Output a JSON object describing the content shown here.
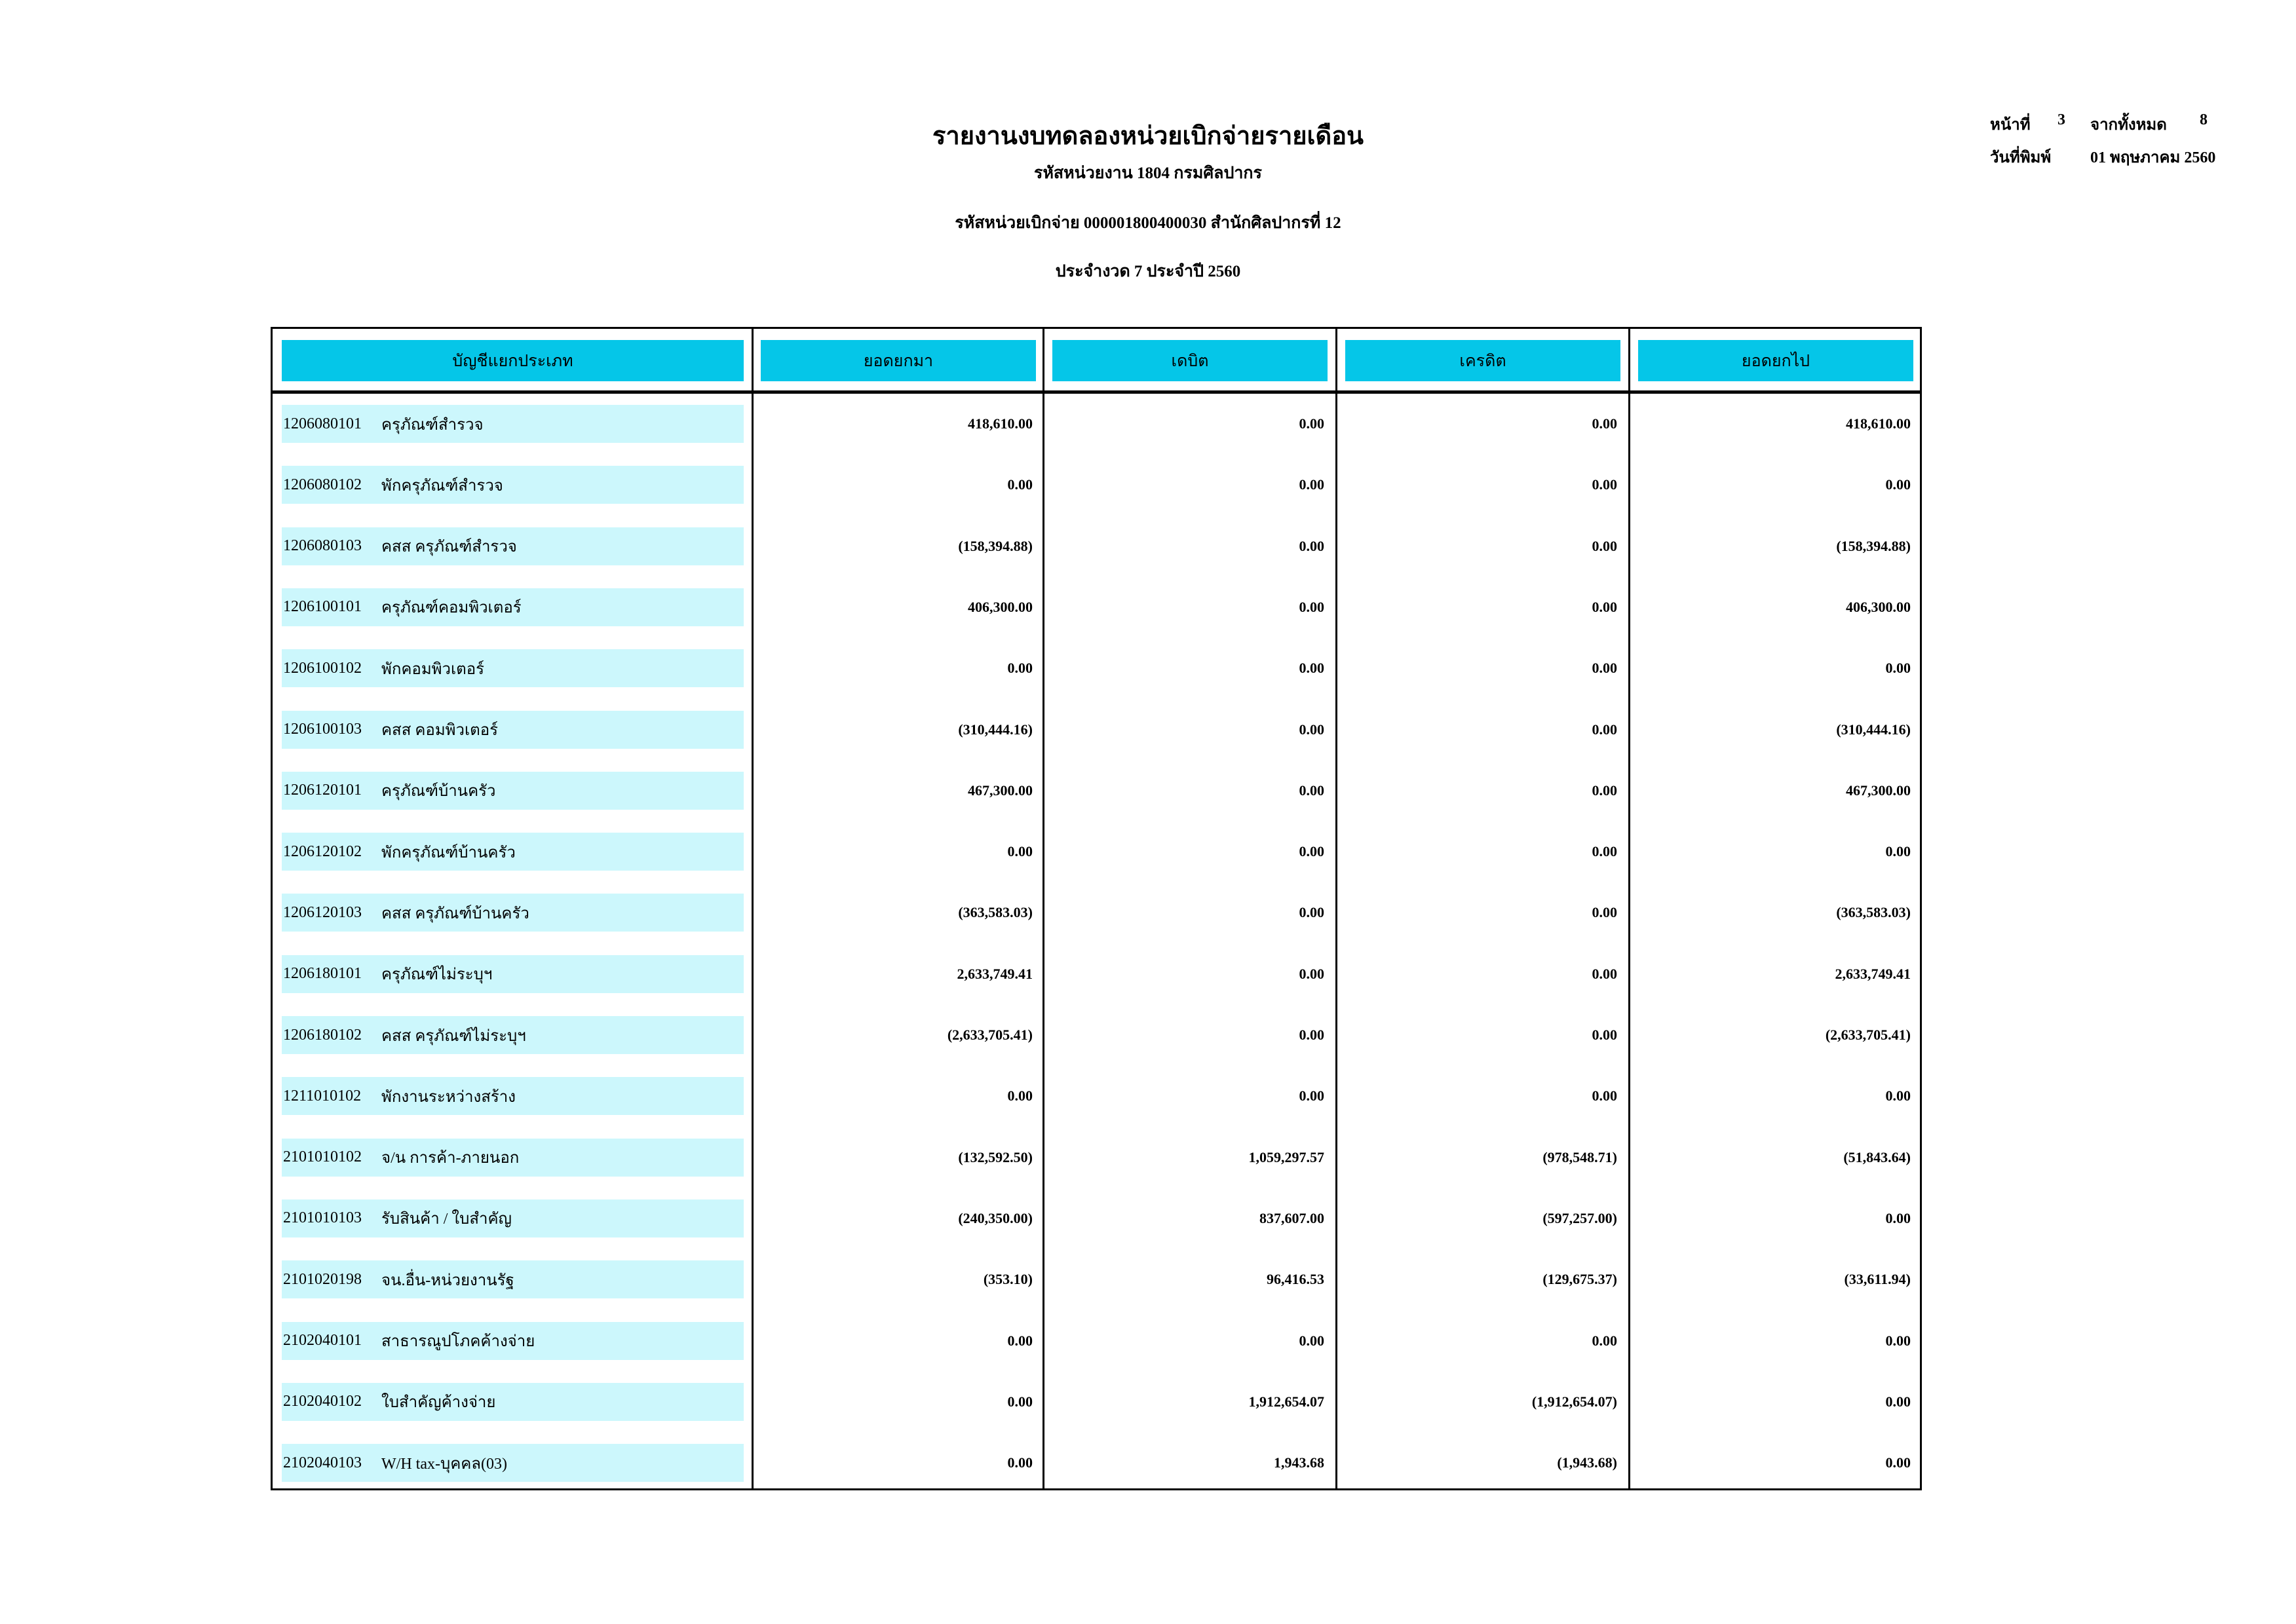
{
  "header": {
    "title": "รายงานงบทดลองหน่วยเบิกจ่ายรายเดือน",
    "agency": "รหัสหน่วยงาน 1804 กรมศิลปากร",
    "disbursing_unit": "รหัสหน่วยเบิกจ่าย 000001800400030 สำนักศิลปากรที่ 12",
    "period": "ประจำงวด 7 ประจำปี 2560"
  },
  "meta": {
    "page_label": "หน้าที่",
    "page": "3",
    "of_label": "จากทั้งหมด",
    "total_pages": "8",
    "print_date_label": "วันที่พิมพ์",
    "print_date": "01 พฤษภาคม 2560"
  },
  "columns": [
    "บัญชีแยกประเภท",
    "ยอดยกมา",
    "เดบิต",
    "เครดิต",
    "ยอดยกไป"
  ],
  "colors": {
    "header_bg": "#05c6e8",
    "account_bg": "#ccf7fc"
  },
  "rows": [
    {
      "code": "1206080101",
      "name": "ครุภัณฑ์สำรวจ",
      "brought": "418,610.00",
      "debit": "0.00",
      "credit": "0.00",
      "carried": "418,610.00"
    },
    {
      "code": "1206080102",
      "name": "พักครุภัณฑ์สำรวจ",
      "brought": "0.00",
      "debit": "0.00",
      "credit": "0.00",
      "carried": "0.00"
    },
    {
      "code": "1206080103",
      "name": "คสส ครุภัณฑ์สำรวจ",
      "brought": "(158,394.88)",
      "debit": "0.00",
      "credit": "0.00",
      "carried": "(158,394.88)"
    },
    {
      "code": "1206100101",
      "name": "ครุภัณฑ์คอมพิวเตอร์",
      "brought": "406,300.00",
      "debit": "0.00",
      "credit": "0.00",
      "carried": "406,300.00"
    },
    {
      "code": "1206100102",
      "name": "พักคอมพิวเตอร์",
      "brought": "0.00",
      "debit": "0.00",
      "credit": "0.00",
      "carried": "0.00"
    },
    {
      "code": "1206100103",
      "name": "คสส คอมพิวเตอร์",
      "brought": "(310,444.16)",
      "debit": "0.00",
      "credit": "0.00",
      "carried": "(310,444.16)"
    },
    {
      "code": "1206120101",
      "name": "ครุภัณฑ์บ้านครัว",
      "brought": "467,300.00",
      "debit": "0.00",
      "credit": "0.00",
      "carried": "467,300.00"
    },
    {
      "code": "1206120102",
      "name": "พักครุภัณฑ์บ้านครัว",
      "brought": "0.00",
      "debit": "0.00",
      "credit": "0.00",
      "carried": "0.00"
    },
    {
      "code": "1206120103",
      "name": "คสส ครุภัณฑ์บ้านครัว",
      "brought": "(363,583.03)",
      "debit": "0.00",
      "credit": "0.00",
      "carried": "(363,583.03)"
    },
    {
      "code": "1206180101",
      "name": "ครุภัณฑ์ไม่ระบุฯ",
      "brought": "2,633,749.41",
      "debit": "0.00",
      "credit": "0.00",
      "carried": "2,633,749.41"
    },
    {
      "code": "1206180102",
      "name": "คสส ครุภัณฑ์ไม่ระบุฯ",
      "brought": "(2,633,705.41)",
      "debit": "0.00",
      "credit": "0.00",
      "carried": "(2,633,705.41)"
    },
    {
      "code": "1211010102",
      "name": "พักงานระหว่างสร้าง",
      "brought": "0.00",
      "debit": "0.00",
      "credit": "0.00",
      "carried": "0.00"
    },
    {
      "code": "2101010102",
      "name": "จ/น การค้า-ภายนอก",
      "brought": "(132,592.50)",
      "debit": "1,059,297.57",
      "credit": "(978,548.71)",
      "carried": "(51,843.64)"
    },
    {
      "code": "2101010103",
      "name": "รับสินค้า / ใบสำคัญ",
      "brought": "(240,350.00)",
      "debit": "837,607.00",
      "credit": "(597,257.00)",
      "carried": "0.00"
    },
    {
      "code": "2101020198",
      "name": "จน.อื่น-หน่วยงานรัฐ",
      "brought": "(353.10)",
      "debit": "96,416.53",
      "credit": "(129,675.37)",
      "carried": "(33,611.94)"
    },
    {
      "code": "2102040101",
      "name": "สาธารณูปโภคค้างจ่าย",
      "brought": "0.00",
      "debit": "0.00",
      "credit": "0.00",
      "carried": "0.00"
    },
    {
      "code": "2102040102",
      "name": "ใบสำคัญค้างจ่าย",
      "brought": "0.00",
      "debit": "1,912,654.07",
      "credit": "(1,912,654.07)",
      "carried": "0.00"
    },
    {
      "code": "2102040103",
      "name": "W/H tax-บุคคล(03)",
      "brought": "0.00",
      "debit": "1,943.68",
      "credit": "(1,943.68)",
      "carried": "0.00"
    }
  ]
}
